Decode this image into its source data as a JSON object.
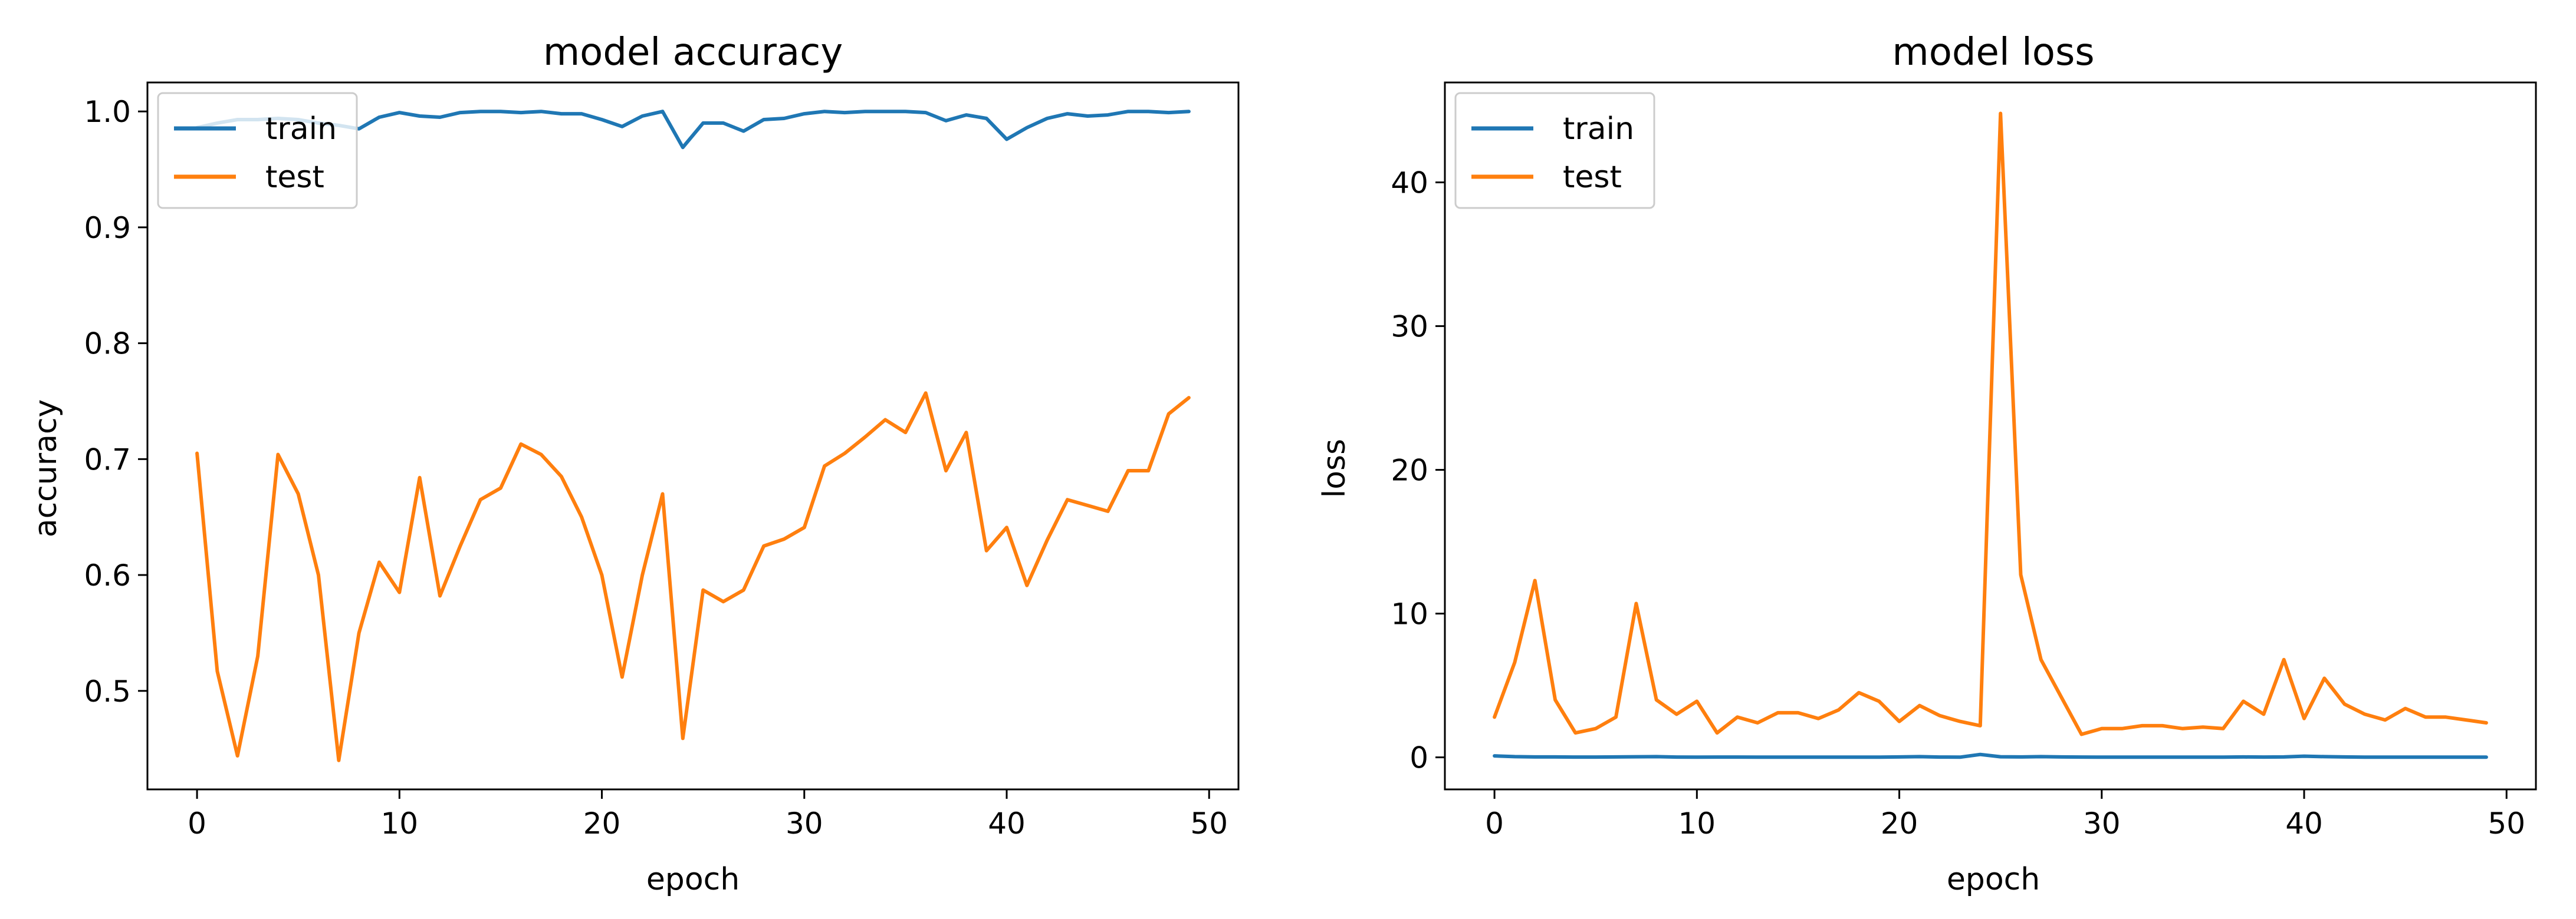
{
  "colors": {
    "train": "#1f77b4",
    "test": "#ff7f0e",
    "axes": "#000000",
    "legend_border": "#cccccc",
    "background": "#ffffff"
  },
  "chart_data": [
    {
      "type": "line",
      "title": "model accuracy",
      "xlabel": "epoch",
      "ylabel": "accuracy",
      "xlim": [
        -2.45,
        51.45
      ],
      "ylim": [
        0.415,
        1.025
      ],
      "xticks": [
        0,
        10,
        20,
        30,
        40,
        50
      ],
      "yticks": [
        0.5,
        0.6,
        0.7,
        0.8,
        0.9,
        1.0
      ],
      "ytick_labels": [
        "0.5",
        "0.6",
        "0.7",
        "0.8",
        "0.9",
        "1.0"
      ],
      "grid": false,
      "legend": "upper left",
      "series": [
        {
          "name": "train",
          "color": "#1f77b4",
          "x": [
            0,
            1,
            2,
            3,
            4,
            5,
            6,
            7,
            8,
            9,
            10,
            11,
            12,
            13,
            14,
            15,
            16,
            17,
            18,
            19,
            20,
            21,
            22,
            23,
            24,
            25,
            26,
            27,
            28,
            29,
            30,
            31,
            32,
            33,
            34,
            35,
            36,
            37,
            38,
            39,
            40,
            41,
            42,
            43,
            44,
            45,
            46,
            47,
            48,
            49
          ],
          "y": [
            0.986,
            0.99,
            0.993,
            0.993,
            0.994,
            0.993,
            0.99,
            0.988,
            0.985,
            0.995,
            0.999,
            0.996,
            0.995,
            0.999,
            1.0,
            1.0,
            0.999,
            1.0,
            0.998,
            0.998,
            0.993,
            0.987,
            0.996,
            1.0,
            0.969,
            0.99,
            0.99,
            0.983,
            0.993,
            0.994,
            0.998,
            1.0,
            0.999,
            1.0,
            1.0,
            1.0,
            0.999,
            0.992,
            0.997,
            0.994,
            0.976,
            0.986,
            0.994,
            0.998,
            0.996,
            0.997,
            1.0,
            1.0,
            0.999,
            1.0
          ]
        },
        {
          "name": "test",
          "color": "#ff7f0e",
          "x": [
            0,
            1,
            2,
            3,
            4,
            5,
            6,
            7,
            8,
            9,
            10,
            11,
            12,
            13,
            14,
            15,
            16,
            17,
            18,
            19,
            20,
            21,
            22,
            23,
            24,
            25,
            26,
            27,
            28,
            29,
            30,
            31,
            32,
            33,
            34,
            35,
            36,
            37,
            38,
            39,
            40,
            41,
            42,
            43,
            44,
            45,
            46,
            47,
            48,
            49
          ],
          "y": [
            0.705,
            0.517,
            0.444,
            0.53,
            0.704,
            0.67,
            0.6,
            0.44,
            0.55,
            0.611,
            0.585,
            0.684,
            0.582,
            0.625,
            0.665,
            0.675,
            0.713,
            0.704,
            0.685,
            0.65,
            0.6,
            0.512,
            0.6,
            0.67,
            0.459,
            0.587,
            0.577,
            0.587,
            0.625,
            0.631,
            0.641,
            0.694,
            0.705,
            0.719,
            0.734,
            0.723,
            0.757,
            0.69,
            0.723,
            0.621,
            0.641,
            0.591,
            0.63,
            0.665,
            0.66,
            0.655,
            0.69,
            0.69,
            0.739,
            0.753
          ]
        }
      ]
    },
    {
      "type": "line",
      "title": "model loss",
      "xlabel": "epoch",
      "ylabel": "loss",
      "xlim": [
        -2.45,
        51.45
      ],
      "ylim": [
        -2.23,
        46.95
      ],
      "xticks": [
        0,
        10,
        20,
        30,
        40,
        50
      ],
      "yticks": [
        0,
        10,
        20,
        30,
        40
      ],
      "ytick_labels": [
        "0",
        "10",
        "20",
        "30",
        "40"
      ],
      "grid": false,
      "legend": "upper left",
      "series": [
        {
          "name": "train",
          "color": "#1f77b4",
          "x": [
            0,
            1,
            2,
            3,
            4,
            5,
            6,
            7,
            8,
            9,
            10,
            11,
            12,
            13,
            14,
            15,
            16,
            17,
            18,
            19,
            20,
            21,
            22,
            23,
            24,
            25,
            26,
            27,
            28,
            29,
            30,
            31,
            32,
            33,
            34,
            35,
            36,
            37,
            38,
            39,
            40,
            41,
            42,
            43,
            44,
            45,
            46,
            47,
            48,
            49
          ],
          "y": [
            0.1,
            0.05,
            0.03,
            0.03,
            0.02,
            0.02,
            0.03,
            0.04,
            0.05,
            0.02,
            0.01,
            0.02,
            0.02,
            0.01,
            0.01,
            0.01,
            0.01,
            0.01,
            0.01,
            0.01,
            0.03,
            0.05,
            0.02,
            0.01,
            0.2,
            0.04,
            0.03,
            0.05,
            0.03,
            0.02,
            0.01,
            0.01,
            0.01,
            0.01,
            0.01,
            0.01,
            0.01,
            0.03,
            0.02,
            0.03,
            0.08,
            0.05,
            0.03,
            0.01,
            0.01,
            0.01,
            0.01,
            0.01,
            0.01,
            0.01
          ]
        },
        {
          "name": "test",
          "color": "#ff7f0e",
          "x": [
            0,
            1,
            2,
            3,
            4,
            5,
            6,
            7,
            8,
            9,
            10,
            11,
            12,
            13,
            14,
            15,
            16,
            17,
            18,
            19,
            20,
            21,
            22,
            23,
            24,
            25,
            26,
            27,
            28,
            29,
            30,
            31,
            32,
            33,
            34,
            35,
            36,
            37,
            38,
            39,
            40,
            41,
            42,
            43,
            44,
            45,
            46,
            47,
            48,
            49
          ],
          "y": [
            2.8,
            6.6,
            12.3,
            4.0,
            1.7,
            2.0,
            2.8,
            10.7,
            4.0,
            3.0,
            3.9,
            1.7,
            2.8,
            2.4,
            3.1,
            3.1,
            2.7,
            3.3,
            4.5,
            3.9,
            2.5,
            3.6,
            2.9,
            2.5,
            2.2,
            44.8,
            12.7,
            6.8,
            4.2,
            1.6,
            2.0,
            2.0,
            2.2,
            2.2,
            2.0,
            2.1,
            2.0,
            3.9,
            3.0,
            6.8,
            2.7,
            5.5,
            3.7,
            3.0,
            2.6,
            3.4,
            2.8,
            2.8,
            2.6,
            2.4
          ]
        }
      ]
    }
  ]
}
